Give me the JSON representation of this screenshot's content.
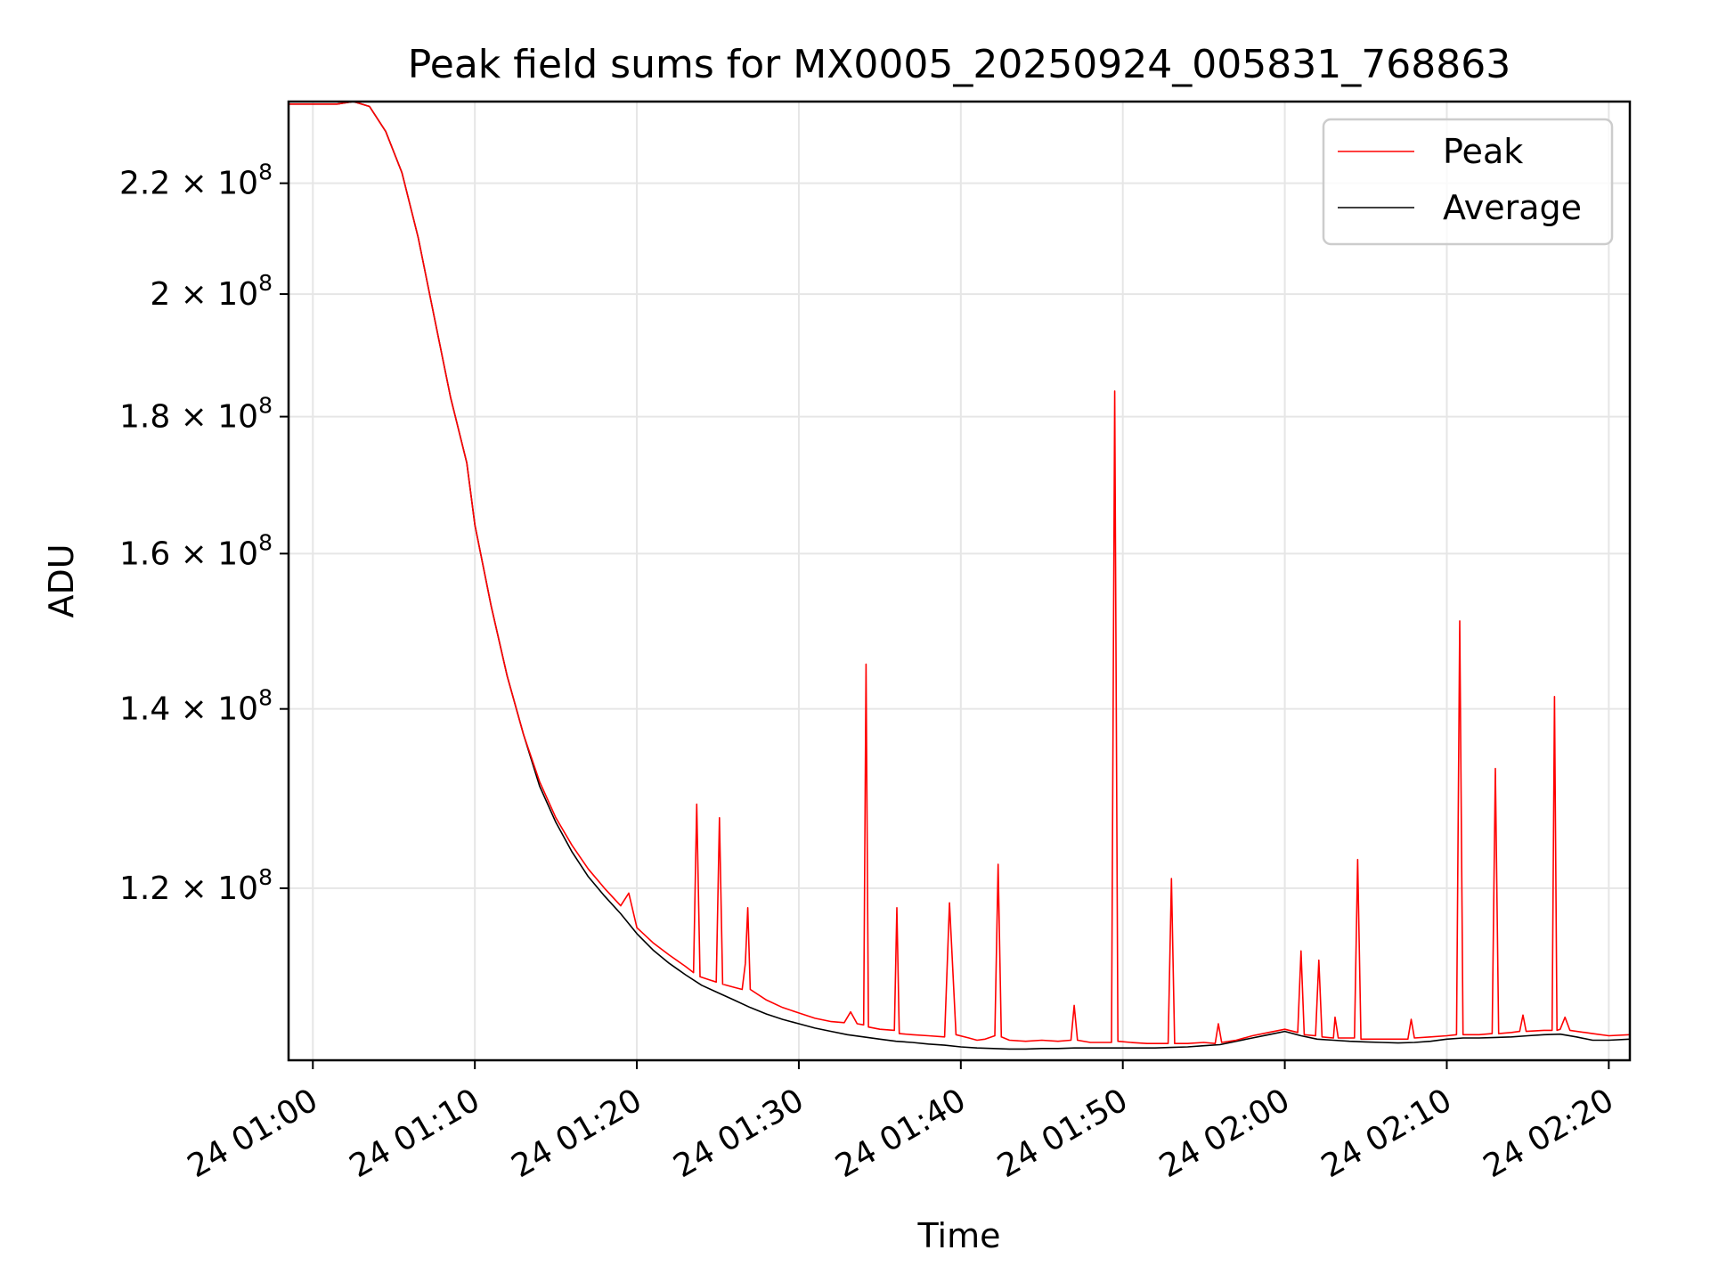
{
  "chart_data": {
    "type": "line",
    "title": "Peak field sums for MX0005_20250924_005831_768863",
    "xlabel": "Time",
    "ylabel": "ADU",
    "y_scale": "log",
    "x_unit": "minutes past 24 01:00",
    "xlim": [
      -1.5,
      81.3
    ],
    "ylim": [
      103500000,
      236000000
    ],
    "grid": true,
    "legend_position": "top-right",
    "x_ticks": [
      {
        "value": 0,
        "label": "24 01:00"
      },
      {
        "value": 10,
        "label": "24 01:10"
      },
      {
        "value": 20,
        "label": "24 01:20"
      },
      {
        "value": 30,
        "label": "24 01:30"
      },
      {
        "value": 40,
        "label": "24 01:40"
      },
      {
        "value": 50,
        "label": "24 01:50"
      },
      {
        "value": 60,
        "label": "24 02:00"
      },
      {
        "value": 70,
        "label": "24 02:10"
      },
      {
        "value": 80,
        "label": "24 02:20"
      }
    ],
    "y_ticks": [
      {
        "value": 120000000,
        "mantissa": "1.2",
        "exponent": "8"
      },
      {
        "value": 140000000,
        "mantissa": "1.4",
        "exponent": "8"
      },
      {
        "value": 160000000,
        "mantissa": "1.6",
        "exponent": "8"
      },
      {
        "value": 180000000,
        "mantissa": "1.8",
        "exponent": "8"
      },
      {
        "value": 200000000,
        "mantissa": "2",
        "exponent": "8"
      },
      {
        "value": 220000000,
        "mantissa": "2.2",
        "exponent": "8"
      }
    ],
    "series": [
      {
        "name": "Peak",
        "color": "#ff0000",
        "points": [
          [
            -1.5,
            235500000
          ],
          [
            1.5,
            235500000
          ],
          [
            2.5,
            236000000
          ],
          [
            3.5,
            235000000
          ],
          [
            4.5,
            230000000
          ],
          [
            5.5,
            222000000
          ],
          [
            6.5,
            210000000
          ],
          [
            7.5,
            196000000
          ],
          [
            8.5,
            183000000
          ],
          [
            9.5,
            173000000
          ],
          [
            10,
            164000000
          ],
          [
            11,
            153000000
          ],
          [
            12,
            144000000
          ],
          [
            13,
            137000000
          ],
          [
            14,
            131500000
          ],
          [
            15,
            127500000
          ],
          [
            16,
            124500000
          ],
          [
            17,
            122000000
          ],
          [
            18,
            120000000
          ],
          [
            19,
            118200000
          ],
          [
            19.5,
            119500000
          ],
          [
            20,
            116000000
          ],
          [
            21,
            114500000
          ],
          [
            22,
            113300000
          ],
          [
            23,
            112200000
          ],
          [
            23.5,
            111600000
          ],
          [
            23.7,
            129000000
          ],
          [
            23.9,
            111200000
          ],
          [
            24.5,
            110900000
          ],
          [
            24.9,
            110700000
          ],
          [
            25.1,
            127500000
          ],
          [
            25.3,
            110500000
          ],
          [
            26,
            110200000
          ],
          [
            26.5,
            110000000
          ],
          [
            26.7,
            112500000
          ],
          [
            26.85,
            118000000
          ],
          [
            27.0,
            110000000
          ],
          [
            28,
            109000000
          ],
          [
            29,
            108300000
          ],
          [
            30,
            107800000
          ],
          [
            31,
            107300000
          ],
          [
            32,
            107000000
          ],
          [
            32.8,
            106900000
          ],
          [
            33.2,
            107900000
          ],
          [
            33.6,
            106800000
          ],
          [
            34.0,
            106700000
          ],
          [
            34.15,
            145500000
          ],
          [
            34.3,
            106500000
          ],
          [
            35,
            106300000
          ],
          [
            35.9,
            106200000
          ],
          [
            36.05,
            118000000
          ],
          [
            36.2,
            105900000
          ],
          [
            37,
            105800000
          ],
          [
            38,
            105700000
          ],
          [
            39,
            105600000
          ],
          [
            39.3,
            118500000
          ],
          [
            39.7,
            105800000
          ],
          [
            40.5,
            105500000
          ],
          [
            41,
            105300000
          ],
          [
            41.5,
            105400000
          ],
          [
            42.1,
            105700000
          ],
          [
            42.3,
            122500000
          ],
          [
            42.5,
            105600000
          ],
          [
            43,
            105300000
          ],
          [
            44,
            105200000
          ],
          [
            45,
            105300000
          ],
          [
            46,
            105200000
          ],
          [
            46.8,
            105300000
          ],
          [
            47.0,
            108500000
          ],
          [
            47.2,
            105300000
          ],
          [
            48,
            105100000
          ],
          [
            49.3,
            105100000
          ],
          [
            49.5,
            184000000
          ],
          [
            49.7,
            105200000
          ],
          [
            50.5,
            105100000
          ],
          [
            51.5,
            105000000
          ],
          [
            52.8,
            105000000
          ],
          [
            53.0,
            121000000
          ],
          [
            53.2,
            105000000
          ],
          [
            54,
            105000000
          ],
          [
            55,
            105100000
          ],
          [
            55.7,
            105000000
          ],
          [
            55.9,
            106800000
          ],
          [
            56.1,
            105100000
          ],
          [
            57,
            105300000
          ],
          [
            58,
            105700000
          ],
          [
            59,
            106000000
          ],
          [
            60,
            106300000
          ],
          [
            60.8,
            106000000
          ],
          [
            61.0,
            113700000
          ],
          [
            61.2,
            105800000
          ],
          [
            61.9,
            105700000
          ],
          [
            62.1,
            112800000
          ],
          [
            62.3,
            105600000
          ],
          [
            63,
            105500000
          ],
          [
            63.1,
            107400000
          ],
          [
            63.3,
            105500000
          ],
          [
            64.3,
            105500000
          ],
          [
            64.5,
            123000000
          ],
          [
            64.7,
            105400000
          ],
          [
            66,
            105400000
          ],
          [
            67,
            105400000
          ],
          [
            67.6,
            105400000
          ],
          [
            67.8,
            107200000
          ],
          [
            68.0,
            105500000
          ],
          [
            69,
            105600000
          ],
          [
            70,
            105700000
          ],
          [
            70.6,
            105800000
          ],
          [
            70.8,
            151000000
          ],
          [
            71.0,
            105800000
          ],
          [
            72,
            105800000
          ],
          [
            72.8,
            105900000
          ],
          [
            73.0,
            133000000
          ],
          [
            73.2,
            105900000
          ],
          [
            74,
            106000000
          ],
          [
            74.5,
            106100000
          ],
          [
            74.7,
            107600000
          ],
          [
            74.9,
            106100000
          ],
          [
            76,
            106200000
          ],
          [
            76.5,
            106200000
          ],
          [
            76.65,
            141500000
          ],
          [
            76.8,
            106200000
          ],
          [
            77,
            106300000
          ],
          [
            77.3,
            107400000
          ],
          [
            77.6,
            106200000
          ],
          [
            79,
            105900000
          ],
          [
            80,
            105700000
          ],
          [
            81.3,
            105800000
          ]
        ]
      },
      {
        "name": "Average",
        "color": "#000000",
        "points": [
          [
            -1.5,
            235500000
          ],
          [
            1.5,
            235500000
          ],
          [
            2.5,
            236000000
          ],
          [
            3.5,
            235000000
          ],
          [
            4.5,
            230000000
          ],
          [
            5.5,
            222000000
          ],
          [
            6.5,
            210000000
          ],
          [
            7.5,
            196000000
          ],
          [
            8.5,
            183000000
          ],
          [
            9.5,
            173000000
          ],
          [
            10,
            164000000
          ],
          [
            11,
            153000000
          ],
          [
            12,
            144000000
          ],
          [
            13,
            137000000
          ],
          [
            14,
            131000000
          ],
          [
            15,
            127000000
          ],
          [
            16,
            123800000
          ],
          [
            17,
            121200000
          ],
          [
            18,
            119200000
          ],
          [
            19,
            117400000
          ],
          [
            20,
            115400000
          ],
          [
            21,
            113800000
          ],
          [
            22,
            112500000
          ],
          [
            23,
            111400000
          ],
          [
            24,
            110400000
          ],
          [
            25,
            109700000
          ],
          [
            26,
            109000000
          ],
          [
            27,
            108300000
          ],
          [
            28,
            107700000
          ],
          [
            29,
            107200000
          ],
          [
            30,
            106800000
          ],
          [
            31,
            106400000
          ],
          [
            32,
            106100000
          ],
          [
            33,
            105800000
          ],
          [
            34,
            105600000
          ],
          [
            35,
            105400000
          ],
          [
            36,
            105200000
          ],
          [
            37,
            105100000
          ],
          [
            38,
            104950000
          ],
          [
            39,
            104850000
          ],
          [
            40,
            104700000
          ],
          [
            41,
            104600000
          ],
          [
            42,
            104550000
          ],
          [
            43,
            104500000
          ],
          [
            44,
            104500000
          ],
          [
            45,
            104550000
          ],
          [
            46,
            104550000
          ],
          [
            47,
            104600000
          ],
          [
            48,
            104600000
          ],
          [
            49,
            104600000
          ],
          [
            50,
            104600000
          ],
          [
            51,
            104600000
          ],
          [
            52,
            104600000
          ],
          [
            53,
            104650000
          ],
          [
            54,
            104700000
          ],
          [
            55,
            104800000
          ],
          [
            56,
            104900000
          ],
          [
            57,
            105200000
          ],
          [
            58,
            105500000
          ],
          [
            59,
            105800000
          ],
          [
            60,
            106100000
          ],
          [
            61,
            105700000
          ],
          [
            62,
            105400000
          ],
          [
            63,
            105300000
          ],
          [
            64,
            105200000
          ],
          [
            65,
            105150000
          ],
          [
            66,
            105100000
          ],
          [
            67,
            105050000
          ],
          [
            68,
            105100000
          ],
          [
            69,
            105200000
          ],
          [
            70,
            105400000
          ],
          [
            71,
            105500000
          ],
          [
            72,
            105500000
          ],
          [
            73,
            105550000
          ],
          [
            74,
            105600000
          ],
          [
            75,
            105700000
          ],
          [
            76,
            105800000
          ],
          [
            77,
            105850000
          ],
          [
            78,
            105600000
          ],
          [
            79,
            105300000
          ],
          [
            80,
            105300000
          ],
          [
            81.3,
            105400000
          ]
        ]
      }
    ]
  }
}
